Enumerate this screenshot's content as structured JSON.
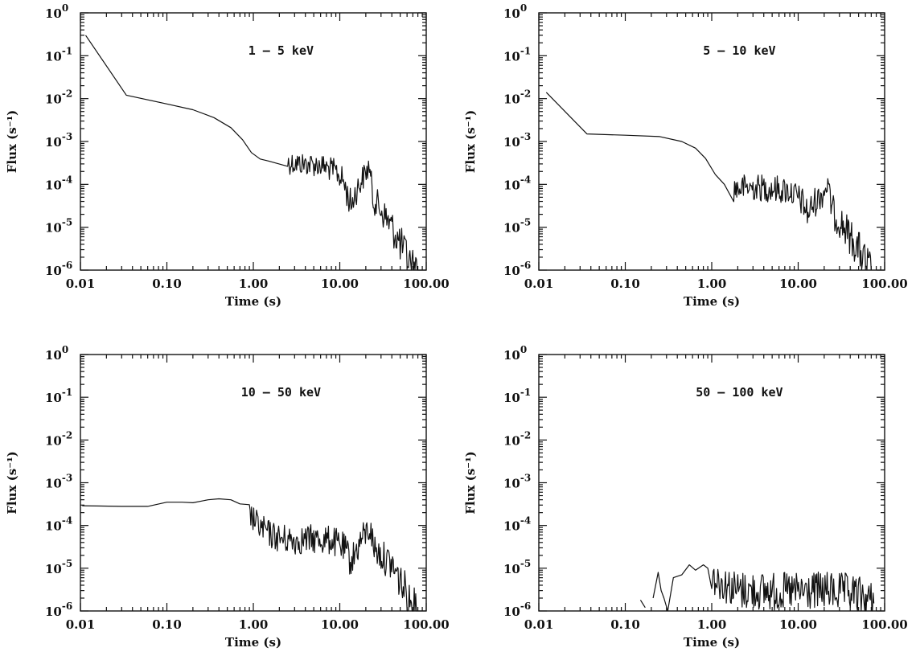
{
  "chart_data": [
    {
      "type": "line",
      "title": "1 – 5 keV",
      "xlabel": "Time (s)",
      "ylabel": "Flux (s⁻¹)",
      "xscale": "log",
      "yscale": "log",
      "xlim": [
        0.01,
        100
      ],
      "ylim": [
        1e-06,
        1
      ],
      "xticks": [
        "0.01",
        "0.10",
        "1.00",
        "10.00",
        "100.00"
      ],
      "yticks": [
        "10",
        "10",
        "10",
        "10",
        "10",
        "10",
        "10"
      ],
      "ytick_exponents": [
        "0",
        "-1",
        "-2",
        "-3",
        "-4",
        "-5",
        "-6"
      ],
      "series": [
        {
          "name": "1 – 5 keV",
          "noise_after": 2.0,
          "x": [
            0.0115,
            0.034,
            0.1,
            0.2,
            0.35,
            0.55,
            0.75,
            0.95,
            1.2,
            1.5,
            2.5,
            4,
            6,
            9,
            11,
            12.5,
            13.5,
            15,
            18,
            21,
            22,
            24,
            30,
            40,
            50,
            60,
            70,
            80
          ],
          "y": [
            0.3,
            0.012,
            0.0075,
            0.0055,
            0.0036,
            0.0021,
            0.0011,
            0.00055,
            0.00039,
            0.00035,
            0.00032,
            0.0003,
            0.00028,
            0.0002,
            0.00012,
            5e-05,
            3.3e-05,
            6e-05,
            0.00013,
            0.00022,
            0.00028,
            5e-05,
            2.5e-05,
            1e-05,
            4e-06,
            2e-06,
            1.2e-06,
            1e-06
          ]
        }
      ]
    },
    {
      "type": "line",
      "title": "5 – 10 keV",
      "xlabel": "Time (s)",
      "ylabel": "Flux (s⁻¹)",
      "xscale": "log",
      "yscale": "log",
      "xlim": [
        0.01,
        100
      ],
      "ylim": [
        1e-06,
        1
      ],
      "xticks": [
        "0.01",
        "0.10",
        "1.00",
        "10.00",
        "100.00"
      ],
      "yticks": [
        "10",
        "10",
        "10",
        "10",
        "10",
        "10",
        "10"
      ],
      "ytick_exponents": [
        "0",
        "-1",
        "-2",
        "-3",
        "-4",
        "-5",
        "-6"
      ],
      "series": [
        {
          "name": "5 – 10 keV",
          "noise_after": 1.5,
          "x": [
            0.0122,
            0.036,
            0.1,
            0.25,
            0.45,
            0.65,
            0.85,
            1.1,
            1.4,
            1.8,
            3,
            5,
            8,
            11,
            13,
            15,
            19,
            22,
            23,
            26,
            32,
            40,
            50,
            60,
            70
          ],
          "y": [
            0.014,
            0.0015,
            0.0014,
            0.0013,
            0.001,
            0.0007,
            0.0004,
            0.00017,
            0.0001,
            8e-05,
            8.5e-05,
            8e-05,
            7e-05,
            4e-05,
            2e-05,
            3.5e-05,
            6e-05,
            0.0001,
            5e-05,
            2e-05,
            1.2e-05,
            6e-06,
            3e-06,
            1.5e-06,
            1e-06
          ]
        }
      ]
    },
    {
      "type": "line",
      "title": "10 – 50 keV",
      "xlabel": "Time (s)",
      "ylabel": "Flux (s⁻¹)",
      "xscale": "log",
      "yscale": "log",
      "xlim": [
        0.01,
        100
      ],
      "ylim": [
        1e-06,
        1
      ],
      "xticks": [
        "0.01",
        "0.10",
        "1.00",
        "10.00",
        "100.00"
      ],
      "yticks": [
        "10",
        "10",
        "10",
        "10",
        "10",
        "10",
        "10"
      ],
      "ytick_exponents": [
        "0",
        "-1",
        "-2",
        "-3",
        "-4",
        "-5",
        "-6"
      ],
      "series": [
        {
          "name": "10 – 50 keV",
          "noise_after": 0.8,
          "x": [
            0.0105,
            0.03,
            0.06,
            0.1,
            0.15,
            0.2,
            0.3,
            0.4,
            0.55,
            0.7,
            0.9,
            1.2,
            1.6,
            2,
            3,
            5,
            8,
            11,
            13.5,
            15,
            18,
            21,
            22.5,
            25,
            30,
            40,
            50,
            60,
            70,
            80
          ],
          "y": [
            0.00029,
            0.00028,
            0.00028,
            0.00035,
            0.00035,
            0.00034,
            0.0004,
            0.00042,
            0.0004,
            0.00032,
            0.00018,
            9e-05,
            6e-05,
            5e-05,
            4.5e-05,
            4.8e-05,
            4.5e-05,
            3e-05,
            1.5e-05,
            2.2e-05,
            5e-05,
            7.5e-05,
            8e-05,
            3e-05,
            2e-05,
            1.2e-05,
            5e-06,
            2.5e-06,
            1.3e-06,
            1e-06
          ]
        }
      ]
    },
    {
      "type": "line",
      "title": "50 – 100 keV",
      "xlabel": "Time (s)",
      "ylabel": "Flux (s⁻¹)",
      "xscale": "log",
      "yscale": "log",
      "xlim": [
        0.01,
        100
      ],
      "ylim": [
        1e-06,
        1
      ],
      "xticks": [
        "0.01",
        "0.10",
        "1.00",
        "10.00",
        "100.00"
      ],
      "yticks": [
        "10",
        "10",
        "10",
        "10",
        "10",
        "10",
        "10"
      ],
      "ytick_exponents": [
        "0",
        "-1",
        "-2",
        "-3",
        "-4",
        "-5",
        "-6"
      ],
      "series": [
        {
          "name": "50 – 100 keV",
          "noise_after": 1.0,
          "segments": [
            {
              "x": [
                0.15,
                0.17
              ],
              "y": [
                1.8e-06,
                1.2e-06
              ]
            },
            {
              "x": [
                0.21,
                0.24,
                0.26,
                0.28,
                0.31
              ],
              "y": [
                2e-06,
                8e-06,
                3e-06,
                2e-06,
                1e-06
              ]
            },
            {
              "x": [
                0.31,
                0.36,
                0.45,
                0.55,
                0.65,
                0.8,
                0.9,
                1.0,
                1.2,
                1.5,
                2,
                3,
                5,
                8,
                12,
                20,
                30,
                45,
                60,
                75
              ],
              "y": [
                1e-06,
                6e-06,
                7e-06,
                1.2e-05,
                9e-06,
                1.2e-05,
                1e-05,
                7e-06,
                5e-06,
                4e-06,
                3e-06,
                3e-06,
                2.8e-06,
                2.8e-06,
                2.8e-06,
                3e-06,
                2.8e-06,
                2.5e-06,
                2e-06,
                1.5e-06
              ]
            }
          ]
        }
      ]
    }
  ]
}
